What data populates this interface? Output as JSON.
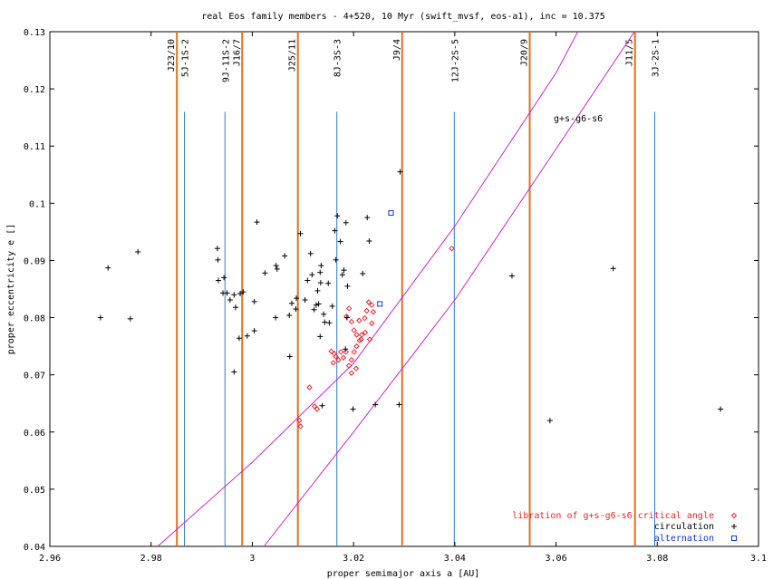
{
  "chart_data": {
    "type": "scatter",
    "title": "real Eos family members - 4+520, 10 Myr (swift_mvsf, eos-a1), inc = 10.375",
    "xlabel": "proper semimajor axis a [AU]",
    "ylabel": "proper eccentricity e []",
    "xlim": [
      2.96,
      3.1
    ],
    "ylim": [
      0.04,
      0.13
    ],
    "xticks": [
      2.96,
      2.98,
      3.0,
      3.02,
      3.04,
      3.06,
      3.08,
      3.1
    ],
    "xtick_labels": [
      "2.96",
      "2.98",
      "3",
      "3.02",
      "3.04",
      "3.06",
      "3.08",
      "3.1"
    ],
    "yticks": [
      0.04,
      0.05,
      0.06,
      0.07,
      0.08,
      0.09,
      0.1,
      0.11,
      0.12,
      0.13
    ],
    "ytick_labels": [
      "0.04",
      "0.05",
      "0.06",
      "0.07",
      "0.08",
      "0.09",
      "0.1",
      "0.11",
      "0.12",
      "0.13"
    ],
    "grid": false,
    "legend_position": "bottom-right",
    "series": [
      {
        "name": "libration of g+s-g6-s6 critical angle",
        "color": "#e8262d",
        "marker": "diamond",
        "points": [
          [
            3.0394,
            0.0921
          ],
          [
            3.0186,
            0.0802
          ],
          [
            3.0191,
            0.0816
          ],
          [
            3.0196,
            0.0793
          ],
          [
            3.0201,
            0.0778
          ],
          [
            3.0206,
            0.077
          ],
          [
            3.0211,
            0.0795
          ],
          [
            3.0215,
            0.0762
          ],
          [
            3.0222,
            0.0799
          ],
          [
            3.0226,
            0.0812
          ],
          [
            3.023,
            0.0827
          ],
          [
            3.0236,
            0.0822
          ],
          [
            3.0239,
            0.081
          ],
          [
            3.0236,
            0.079
          ],
          [
            3.0223,
            0.0774
          ],
          [
            3.0216,
            0.077
          ],
          [
            3.0212,
            0.076
          ],
          [
            3.0206,
            0.075
          ],
          [
            3.0201,
            0.074
          ],
          [
            3.0196,
            0.0726
          ],
          [
            3.0191,
            0.0716
          ],
          [
            3.0185,
            0.074
          ],
          [
            3.018,
            0.073
          ],
          [
            3.0175,
            0.074
          ],
          [
            3.017,
            0.0726
          ],
          [
            3.0165,
            0.0732
          ],
          [
            3.0162,
            0.0737
          ],
          [
            3.0156,
            0.0741
          ],
          [
            3.016,
            0.0721
          ],
          [
            3.0205,
            0.0711
          ],
          [
            3.0196,
            0.0703
          ],
          [
            3.0232,
            0.0762
          ],
          [
            3.0128,
            0.064
          ],
          [
            3.0113,
            0.0678
          ],
          [
            3.0095,
            0.061
          ],
          [
            3.0093,
            0.062
          ],
          [
            3.0123,
            0.0645
          ]
        ]
      },
      {
        "name": "circulation",
        "color": "#000000",
        "marker": "plus",
        "points": [
          [
            2.97,
            0.08
          ],
          [
            2.9715,
            0.0887
          ],
          [
            2.9759,
            0.0798
          ],
          [
            2.9774,
            0.0915
          ],
          [
            2.9931,
            0.0921
          ],
          [
            2.9932,
            0.0901
          ],
          [
            2.9933,
            0.0865
          ],
          [
            2.9942,
            0.0843
          ],
          [
            2.995,
            0.0843
          ],
          [
            2.9944,
            0.087
          ],
          [
            2.9956,
            0.0831
          ],
          [
            2.9964,
            0.084
          ],
          [
            2.9967,
            0.0818
          ],
          [
            2.9976,
            0.0842
          ],
          [
            2.9982,
            0.0845
          ],
          [
            2.9974,
            0.0764
          ],
          [
            2.999,
            0.0768
          ],
          [
            2.9964,
            0.0705
          ],
          [
            3.0004,
            0.0828
          ],
          [
            3.0004,
            0.0777
          ],
          [
            3.0009,
            0.0967
          ],
          [
            3.0025,
            0.0878
          ],
          [
            3.0047,
            0.0891
          ],
          [
            3.0049,
            0.0885
          ],
          [
            3.0064,
            0.0908
          ],
          [
            3.0073,
            0.0804
          ],
          [
            3.0074,
            0.0732
          ],
          [
            3.0078,
            0.0825
          ],
          [
            3.0087,
            0.0834
          ],
          [
            3.0086,
            0.0815
          ],
          [
            3.0095,
            0.0947
          ],
          [
            3.0046,
            0.08
          ],
          [
            3.0104,
            0.0831
          ],
          [
            3.0109,
            0.0865
          ],
          [
            3.0115,
            0.0912
          ],
          [
            3.0118,
            0.0875
          ],
          [
            3.0122,
            0.0814
          ],
          [
            3.0126,
            0.0822
          ],
          [
            3.0129,
            0.0847
          ],
          [
            3.0131,
            0.0824
          ],
          [
            3.0134,
            0.0879
          ],
          [
            3.0135,
            0.0861
          ],
          [
            3.0136,
            0.0891
          ],
          [
            3.0134,
            0.0767
          ],
          [
            3.0141,
            0.0806
          ],
          [
            3.0143,
            0.0792
          ],
          [
            3.0152,
            0.0791
          ],
          [
            3.015,
            0.086
          ],
          [
            3.0158,
            0.082
          ],
          [
            3.0163,
            0.0952
          ],
          [
            3.0165,
            0.0901
          ],
          [
            3.0168,
            0.0978
          ],
          [
            3.0178,
            0.0875
          ],
          [
            3.0174,
            0.0933
          ],
          [
            3.0181,
            0.0883
          ],
          [
            3.0185,
            0.0966
          ],
          [
            3.0188,
            0.0855
          ],
          [
            3.0187,
            0.08
          ],
          [
            3.0184,
            0.0745
          ],
          [
            3.0199,
            0.064
          ],
          [
            3.0138,
            0.0646
          ],
          [
            3.0218,
            0.0877
          ],
          [
            3.0227,
            0.0975
          ],
          [
            3.0231,
            0.0934
          ],
          [
            3.0243,
            0.0648
          ],
          [
            3.029,
            0.0648
          ],
          [
            3.0292,
            0.1055
          ],
          [
            3.0513,
            0.0873
          ],
          [
            3.0588,
            0.062
          ],
          [
            3.0713,
            0.0886
          ],
          [
            3.0925,
            0.064
          ]
        ]
      },
      {
        "name": "alternation",
        "color": "#1133cc",
        "marker": "square",
        "points": [
          [
            3.0274,
            0.0983
          ],
          [
            3.0252,
            0.0824
          ]
        ]
      }
    ],
    "resonances": {
      "mean_motion": [
        {
          "label": "J23/10",
          "a": 2.9851
        },
        {
          "label": "J16/7",
          "a": 2.998
        },
        {
          "label": "J25/11",
          "a": 3.009
        },
        {
          "label": "J9/4",
          "a": 3.0296
        },
        {
          "label": "J20/9",
          "a": 3.0548
        },
        {
          "label": "J11/5",
          "a": 3.0756
        }
      ],
      "three_body": [
        {
          "label": "5J-1S-2",
          "a": 2.9866
        },
        {
          "label": "9J-11S-2",
          "a": 2.9946
        },
        {
          "label": "8J-3S-3",
          "a": 3.0167
        },
        {
          "label": "12J-2S-5",
          "a": 3.0399
        },
        {
          "label": "3J-2S-1",
          "a": 3.0795
        }
      ],
      "mm_color": "#e07020",
      "three_body_color": "#2a7ad0"
    },
    "secular": {
      "label": "g+s-g6-s6",
      "color": "#cc22cc",
      "upper_curve": [
        [
          2.9813,
          0.04
        ],
        [
          3.0,
          0.0547
        ],
        [
          3.02,
          0.072
        ],
        [
          3.04,
          0.096
        ],
        [
          3.06,
          0.1228
        ],
        [
          3.0643,
          0.13
        ]
      ],
      "lower_curve": [
        [
          3.0023,
          0.04
        ],
        [
          3.02,
          0.06
        ],
        [
          3.04,
          0.0831
        ],
        [
          3.06,
          0.1095
        ],
        [
          3.0755,
          0.13
        ]
      ]
    }
  }
}
